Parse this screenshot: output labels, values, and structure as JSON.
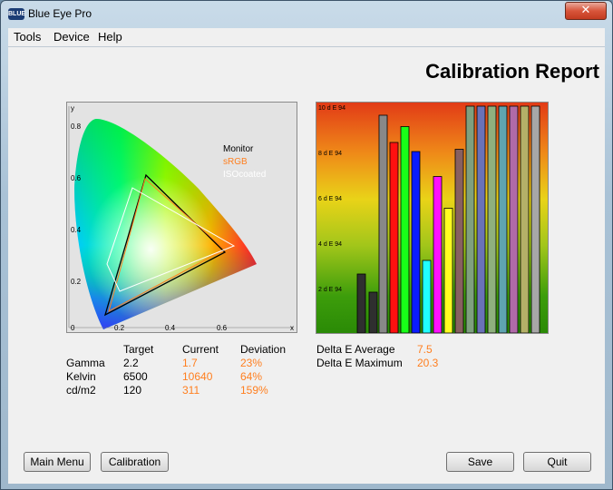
{
  "window": {
    "title": "Blue Eye Pro",
    "icon_text": "BLUE",
    "close_glyph": "✕"
  },
  "menu": [
    "Tools",
    "Device",
    "Help"
  ],
  "report_title": "Calibration Report",
  "cie_chart": {
    "axis_y": "y",
    "axis_x": "x",
    "y_ticks": [
      "0.8",
      "0.6",
      "0.4",
      "0.2",
      "0"
    ],
    "x_ticks": [
      "0.2",
      "0.4",
      "0.6"
    ],
    "legend": [
      {
        "label": "Monitor",
        "color": "#000000"
      },
      {
        "label": "sRGB",
        "color": "#ff7f1f"
      },
      {
        "label": "ISOcoated",
        "color": "#ffffff"
      }
    ]
  },
  "chart_data": {
    "type": "bar",
    "y_tick_labels": [
      "10 d E 94",
      "8 d E 94",
      "6 d E 94",
      "4 d E 94",
      "2 d E 94"
    ],
    "ylim": [
      0,
      10
    ],
    "bars": [
      {
        "value": 2.6,
        "color": "#2f2f2f"
      },
      {
        "value": 1.8,
        "color": "#2f2f2f"
      },
      {
        "value": 9.6,
        "color": "#888888"
      },
      {
        "value": 8.4,
        "color": "#ff1010"
      },
      {
        "value": 9.1,
        "color": "#18ff18"
      },
      {
        "value": 8.0,
        "color": "#0a1cff"
      },
      {
        "value": 3.2,
        "color": "#20ffff"
      },
      {
        "value": 6.9,
        "color": "#ff10ff"
      },
      {
        "value": 5.5,
        "color": "#ffff20"
      },
      {
        "value": 8.1,
        "color": "#886060"
      },
      {
        "value": 10,
        "color": "#7fa07f"
      },
      {
        "value": 10,
        "color": "#6a72b8"
      },
      {
        "value": 10,
        "color": "#8fb07e"
      },
      {
        "value": 10,
        "color": "#5fa4b0"
      },
      {
        "value": 10,
        "color": "#b06aa8"
      },
      {
        "value": 10,
        "color": "#b4b068"
      },
      {
        "value": 10,
        "color": "#a7a7a7"
      }
    ]
  },
  "stats": {
    "headers": {
      "target": "Target",
      "current": "Current",
      "deviation": "Deviation"
    },
    "rows": [
      {
        "label": "Gamma",
        "target": "2.2",
        "current": "1.7",
        "deviation": "23%"
      },
      {
        "label": "Kelvin",
        "target": "6500",
        "current": "10640",
        "deviation": "64%"
      },
      {
        "label": "cd/m2",
        "target": "120",
        "current": "311",
        "deviation": "159%"
      }
    ]
  },
  "delta_e": {
    "average_label": "Delta E Average",
    "average_value": "7.5",
    "maximum_label": "Delta E Maximum",
    "maximum_value": "20.3"
  },
  "buttons": {
    "main_menu": "Main Menu",
    "calibration": "Calibration",
    "save": "Save",
    "quit": "Quit"
  }
}
